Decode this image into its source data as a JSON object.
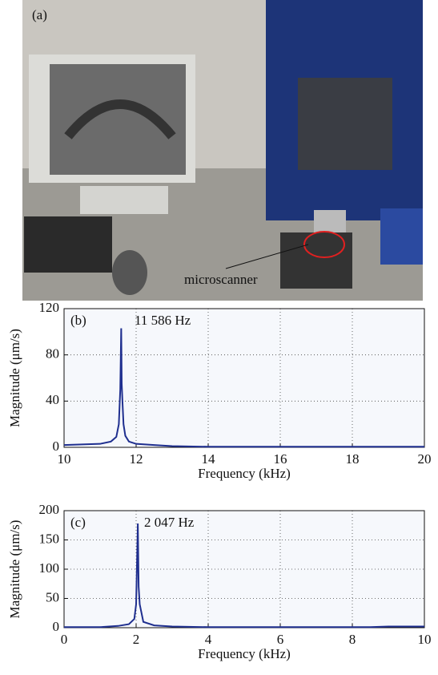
{
  "photo": {
    "panel_label": "(a)",
    "annotation": "microscanner"
  },
  "chart_data": [
    {
      "type": "line",
      "panel_label": "(b)",
      "annotation": "11 586 Hz",
      "x_label": "Frequency (kHz)",
      "y_label": "Magnitude (μm/s)",
      "x": [
        10,
        11,
        11.3,
        11.45,
        11.52,
        11.56,
        11.586,
        11.6,
        11.62,
        11.65,
        11.7,
        11.8,
        12,
        12.5,
        13,
        14,
        20
      ],
      "values": [
        2,
        3,
        5,
        9,
        20,
        50,
        103,
        55,
        40,
        20,
        10,
        5,
        3,
        2,
        1,
        0.5,
        0.5
      ],
      "color": "#1f2f8f",
      "xlim": [
        10,
        20
      ],
      "xticks": [
        10,
        12,
        14,
        16,
        18,
        20
      ],
      "ylim": [
        0,
        120
      ],
      "yticks": [
        0,
        40,
        80,
        120
      ],
      "grid": true
    },
    {
      "type": "line",
      "panel_label": "(c)",
      "annotation": "2 047 Hz",
      "x_label": "Frequency (kHz)",
      "y_label": "Magnitude (μm/s)",
      "x": [
        0,
        1,
        1.5,
        1.8,
        1.95,
        2.0,
        2.047,
        2.07,
        2.1,
        2.2,
        2.5,
        3,
        4,
        8.5,
        9,
        10
      ],
      "values": [
        1,
        1,
        3,
        6,
        15,
        40,
        178,
        70,
        40,
        10,
        4,
        2,
        1,
        1,
        2,
        2
      ],
      "color": "#1f2f8f",
      "xlim": [
        0,
        10
      ],
      "xticks": [
        0,
        2,
        4,
        6,
        8,
        10
      ],
      "ylim": [
        0,
        200
      ],
      "yticks": [
        0,
        50,
        100,
        150,
        200
      ],
      "grid": true
    }
  ]
}
